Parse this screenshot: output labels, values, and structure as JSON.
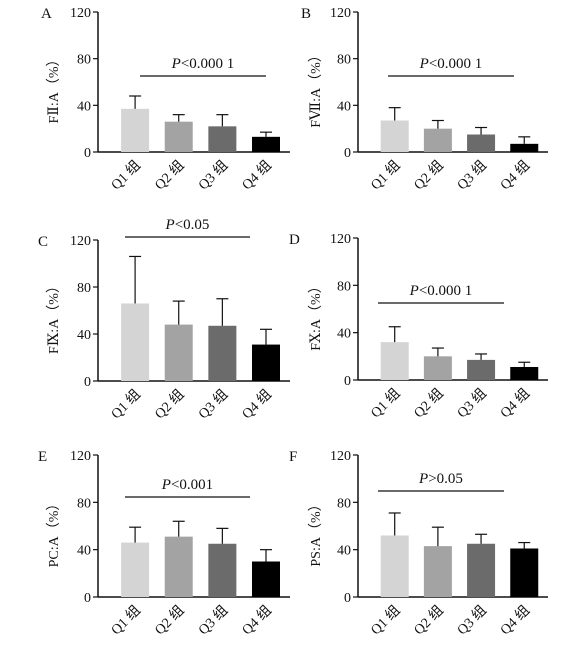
{
  "colors": {
    "q1": "#d4d4d4",
    "q2": "#a3a3a3",
    "q3": "#6b6b6b",
    "q4": "#000000",
    "axis": "#111111"
  },
  "chart_data": [
    {
      "type": "bar",
      "panel": "A",
      "ylabel": "FⅡ:A（%）",
      "ylim": [
        0,
        120
      ],
      "yticks": [
        "0",
        "40",
        "80",
        "120"
      ],
      "categories": [
        "Q1 组",
        "Q2 组",
        "Q3 组",
        "Q4 组"
      ],
      "values": [
        37,
        26,
        22,
        13
      ],
      "errors": [
        11,
        6,
        10,
        4
      ],
      "significance": {
        "p": "P",
        "text": "<0.000 1"
      }
    },
    {
      "type": "bar",
      "panel": "B",
      "ylabel": "FⅦ:A（%）",
      "ylim": [
        0,
        120
      ],
      "yticks": [
        "0",
        "40",
        "80",
        "120"
      ],
      "categories": [
        "Q1 组",
        "Q2 组",
        "Q3 组",
        "Q4 组"
      ],
      "values": [
        27,
        20,
        15,
        7
      ],
      "errors": [
        11,
        7,
        6,
        6
      ],
      "significance": {
        "p": "P",
        "text": "<0.000 1"
      }
    },
    {
      "type": "bar",
      "panel": "C",
      "ylabel": "FⅨ:A（%）",
      "ylim": [
        0,
        120
      ],
      "yticks": [
        "0",
        "40",
        "80",
        "120"
      ],
      "categories": [
        "Q1 组",
        "Q2 组",
        "Q3 组",
        "Q4 组"
      ],
      "values": [
        66,
        48,
        47,
        31
      ],
      "errors": [
        40,
        20,
        23,
        13
      ],
      "significance": {
        "p": "P",
        "text": "<0.05"
      }
    },
    {
      "type": "bar",
      "panel": "D",
      "ylabel": "FⅩ:A（%）",
      "ylim": [
        0,
        120
      ],
      "yticks": [
        "0",
        "40",
        "80",
        "120"
      ],
      "categories": [
        "Q1 组",
        "Q2 组",
        "Q3 组",
        "Q4 组"
      ],
      "values": [
        32,
        20,
        17,
        11
      ],
      "errors": [
        13,
        7,
        5,
        4
      ],
      "significance": {
        "p": "P",
        "text": "<0.000 1"
      }
    },
    {
      "type": "bar",
      "panel": "E",
      "ylabel": "PC:A（%）",
      "ylim": [
        0,
        120
      ],
      "yticks": [
        "0",
        "40",
        "80",
        "120"
      ],
      "categories": [
        "Q1 组",
        "Q2 组",
        "Q3 组",
        "Q4 组"
      ],
      "values": [
        46,
        51,
        45,
        30
      ],
      "errors": [
        13,
        13,
        13,
        10
      ],
      "significance": {
        "p": "P",
        "text": "<0.001"
      }
    },
    {
      "type": "bar",
      "panel": "F",
      "ylabel": "PS:A（%）",
      "ylim": [
        0,
        120
      ],
      "yticks": [
        "0",
        "40",
        "80",
        "120"
      ],
      "categories": [
        "Q1 组",
        "Q2 组",
        "Q3 组",
        "Q4 组"
      ],
      "values": [
        52,
        43,
        45,
        41
      ],
      "errors": [
        19,
        16,
        8,
        5
      ],
      "significance": {
        "p": "P",
        "text": ">0.05"
      }
    }
  ]
}
